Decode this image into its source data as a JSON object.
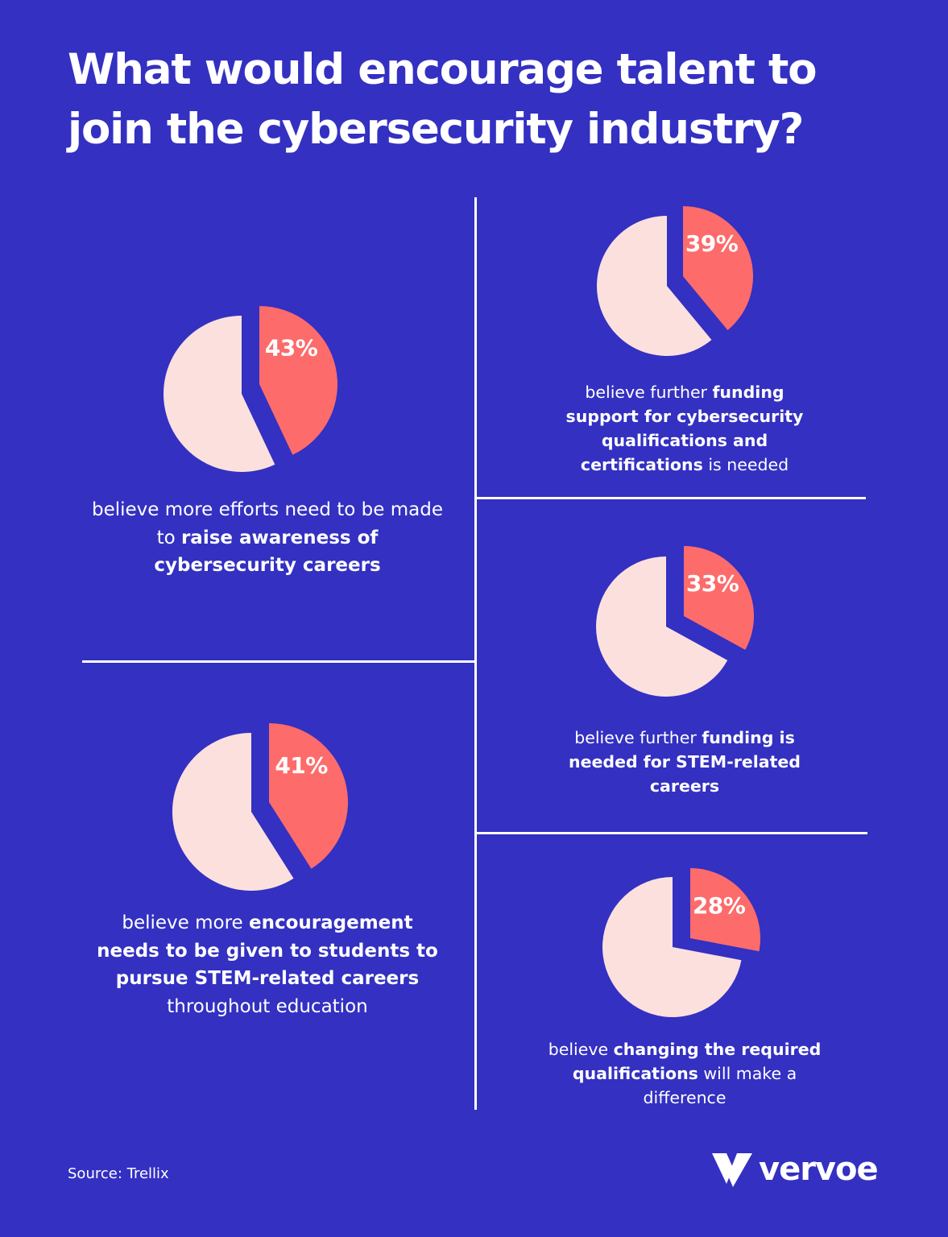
{
  "title": "What would encourage talent to join the cybersecurity industry?",
  "colors": {
    "background": "#3330c2",
    "highlight_slice": "#fd6b6b",
    "remainder_slice": "#fbe0de",
    "text": "#ffffff"
  },
  "chart_data": [
    {
      "type": "pie",
      "value": 43,
      "label": "43%",
      "caption": [
        {
          "text": "believe more efforts need to be made to ",
          "bold": false
        },
        {
          "text": "raise awareness of cybersecurity careers",
          "bold": true
        }
      ]
    },
    {
      "type": "pie",
      "value": 39,
      "label": "39%",
      "caption": [
        {
          "text": "believe further ",
          "bold": false
        },
        {
          "text": "funding support for cybersecurity qualifications and certifications",
          "bold": true
        },
        {
          "text": " is needed",
          "bold": false
        }
      ]
    },
    {
      "type": "pie",
      "value": 33,
      "label": "33%",
      "caption": [
        {
          "text": "believe further ",
          "bold": false
        },
        {
          "text": "funding is needed for STEM-related careers",
          "bold": true
        }
      ]
    },
    {
      "type": "pie",
      "value": 41,
      "label": "41%",
      "caption": [
        {
          "text": "believe more ",
          "bold": false
        },
        {
          "text": "encouragement needs to be given to students to pursue STEM-related careers",
          "bold": true
        },
        {
          "text": " throughout education",
          "bold": false
        }
      ]
    },
    {
      "type": "pie",
      "value": 28,
      "label": "28%",
      "caption": [
        {
          "text": "believe ",
          "bold": false
        },
        {
          "text": "changing the required qualifications",
          "bold": true
        },
        {
          "text": " will make a difference",
          "bold": false
        }
      ]
    }
  ],
  "footer": {
    "source": "Source: Trellix",
    "brand": "vervoe",
    "brand_icon": "vervoe-logo-icon"
  }
}
